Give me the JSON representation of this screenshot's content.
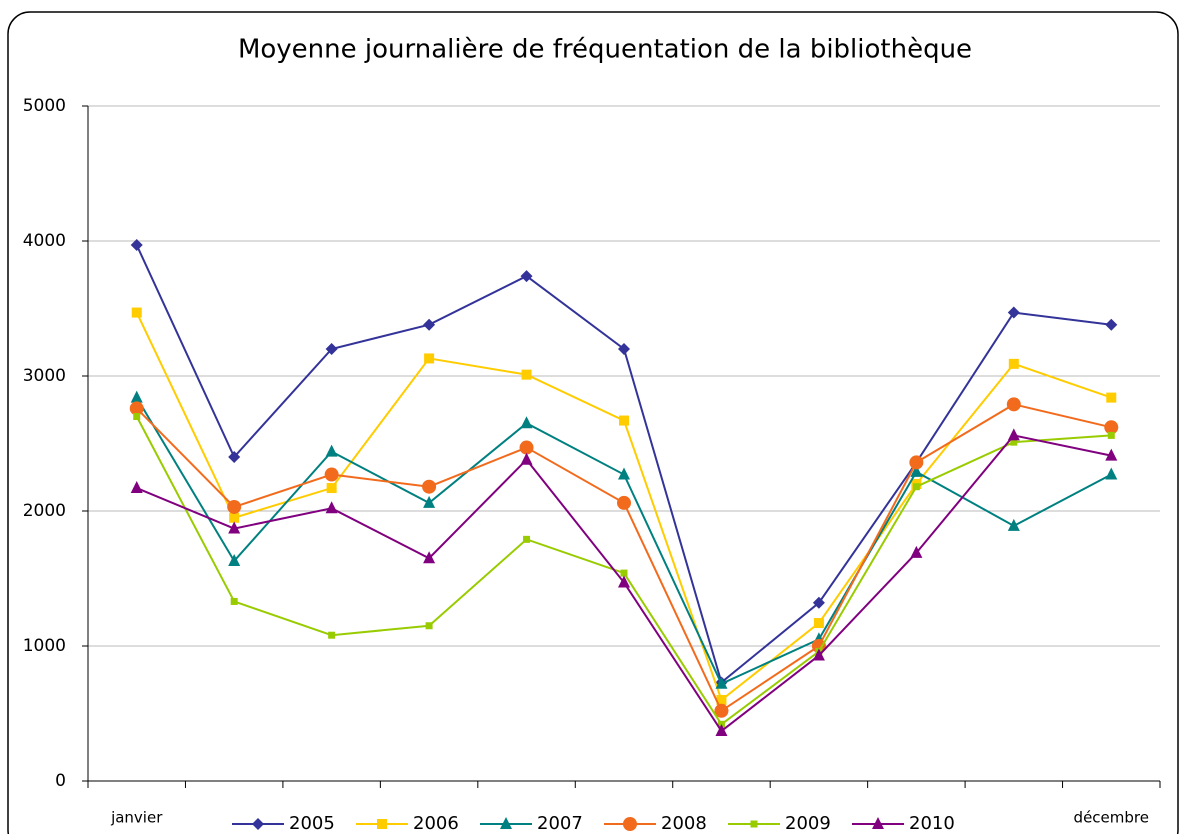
{
  "chart_data": {
    "type": "line",
    "title": "Moyenne journalière de fréquentation de la bibliothèque",
    "categories": [
      "janvier",
      null,
      null,
      null,
      null,
      null,
      null,
      null,
      null,
      null,
      "décembre"
    ],
    "series": [
      {
        "name": "2005",
        "color": "#333399",
        "marker": "diamond",
        "values": [
          3970,
          2400,
          3200,
          3380,
          3740,
          3200,
          730,
          1320,
          2360,
          3470,
          3380
        ]
      },
      {
        "name": "2006",
        "color": "#ffcc00",
        "marker": "square",
        "values": [
          3470,
          1950,
          2170,
          3130,
          3010,
          2670,
          600,
          1170,
          2200,
          3090,
          2840
        ]
      },
      {
        "name": "2007",
        "color": "#008080",
        "marker": "triangle",
        "values": [
          2840,
          1630,
          2440,
          2060,
          2650,
          2270,
          720,
          1050,
          2290,
          1890,
          2270
        ]
      },
      {
        "name": "2008",
        "color": "#f26b1d",
        "marker": "circle",
        "values": [
          2760,
          2030,
          2270,
          2180,
          2470,
          2060,
          520,
          1000,
          2360,
          2790,
          2620
        ]
      },
      {
        "name": "2009",
        "color": "#99cc00",
        "marker": "small-square",
        "values": [
          2700,
          1330,
          1080,
          1150,
          1790,
          1540,
          420,
          960,
          2180,
          2510,
          2560
        ]
      },
      {
        "name": "2010",
        "color": "#800080",
        "marker": "triangle",
        "values": [
          2170,
          1870,
          2020,
          1650,
          2380,
          1470,
          370,
          930,
          1690,
          2560,
          2410
        ]
      }
    ],
    "ylim": [
      0,
      5000
    ],
    "yticks": [
      0,
      1000,
      2000,
      3000,
      4000,
      5000
    ],
    "grid": true,
    "legend": "bottom"
  }
}
